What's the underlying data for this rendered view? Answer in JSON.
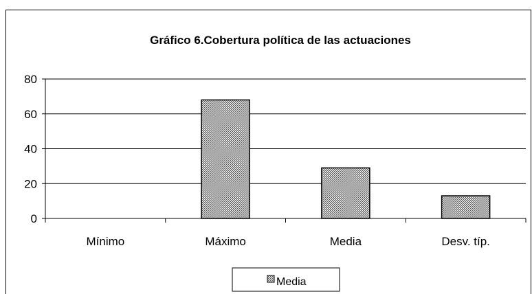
{
  "chart_data": {
    "type": "bar",
    "title": "Gráfico 6.Cobertura política de las actuaciones",
    "categories": [
      "Mínimo",
      "Máximo",
      "Media",
      "Desv. típ."
    ],
    "series": [
      {
        "name": "Media",
        "values": [
          0,
          68,
          29,
          13
        ]
      }
    ],
    "ylim": [
      0,
      80
    ],
    "yticks": [
      0,
      20,
      40,
      60,
      80
    ],
    "grid": true,
    "legend": "bottom",
    "colors": {
      "bar_fill": "#8a8a8a",
      "bar_stroke": "#000000",
      "grid": "#000000"
    }
  }
}
